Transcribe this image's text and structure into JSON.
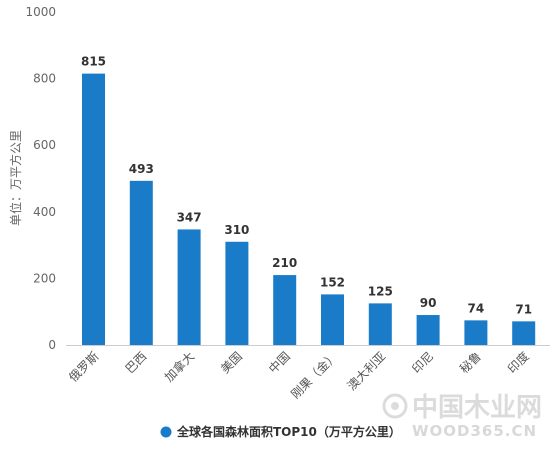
{
  "chart_data": {
    "type": "bar",
    "categories": [
      "俄罗斯",
      "巴西",
      "加拿大",
      "美国",
      "中国",
      "刚果（金）",
      "澳大利亚",
      "印尼",
      "秘鲁",
      "印度"
    ],
    "values": [
      815,
      493,
      347,
      310,
      210,
      152,
      125,
      90,
      74,
      71
    ],
    "ylabel": "单位：万平方公里",
    "ylim": [
      0,
      1000
    ],
    "yticks": [
      0,
      200,
      400,
      600,
      800,
      1000
    ],
    "grid": false,
    "legend": {
      "position": "bottom",
      "entries": [
        "全球各国森林面积TOP10（万平方公里）"
      ]
    },
    "bar_color": "#1a7cc9",
    "data_labels": true
  },
  "watermark": {
    "text": "中国木业网",
    "sub": "WOOD365.CN"
  }
}
